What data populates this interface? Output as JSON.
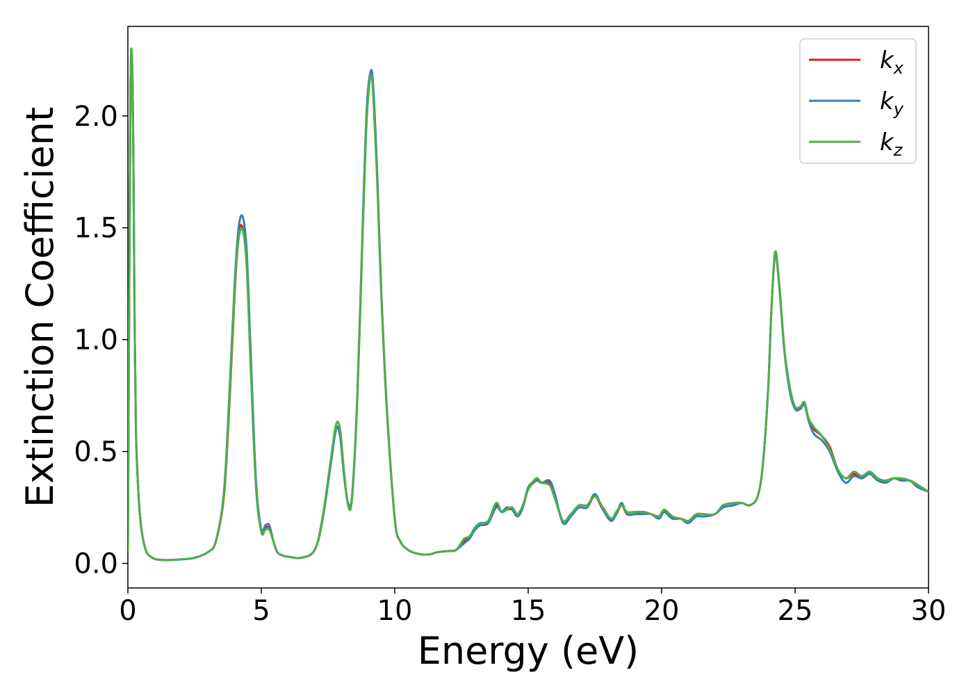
{
  "chart_data": {
    "type": "line",
    "xlabel": "Energy (eV)",
    "ylabel": "Extinction Coefficient",
    "xlim": [
      0,
      30
    ],
    "ylim": [
      -0.11,
      2.4
    ],
    "xticks": [
      0,
      5,
      10,
      15,
      20,
      25,
      30
    ],
    "yticks": [
      0.0,
      0.5,
      1.0,
      1.5,
      2.0
    ],
    "xtick_labels": [
      "0",
      "5",
      "10",
      "15",
      "20",
      "25",
      "30"
    ],
    "ytick_labels": [
      "0.0",
      "0.5",
      "1.0",
      "1.5",
      "2.0"
    ],
    "grid": false,
    "legend_position": "top-right",
    "series": [
      {
        "name": "k_x",
        "label_main": "k",
        "label_sub": "x",
        "color": "#e41a1c",
        "x": [
          0,
          0.05,
          0.1,
          0.15,
          0.2,
          0.25,
          0.3,
          0.4,
          0.5,
          0.6,
          0.7,
          0.8,
          1.0,
          1.3,
          1.6,
          2.0,
          2.5,
          3.0,
          3.3,
          3.6,
          3.8,
          4.0,
          4.15,
          4.3,
          4.45,
          4.6,
          4.8,
          5.0,
          5.15,
          5.3,
          5.45,
          5.6,
          5.8,
          6.0,
          6.5,
          7.0,
          7.3,
          7.6,
          7.8,
          7.95,
          8.1,
          8.25,
          8.4,
          8.6,
          8.8,
          8.95,
          9.1,
          9.2,
          9.35,
          9.5,
          9.7,
          10.0,
          10.2,
          10.5,
          10.8,
          11.0,
          11.3,
          11.6,
          12.0,
          12.3,
          12.6,
          12.8,
          13.0,
          13.2,
          13.5,
          13.8,
          14.0,
          14.2,
          14.4,
          14.6,
          14.8,
          15.0,
          15.3,
          15.5,
          15.8,
          16.0,
          16.3,
          16.6,
          16.9,
          17.2,
          17.5,
          17.8,
          18.1,
          18.3,
          18.5,
          18.7,
          19.0,
          19.3,
          19.6,
          19.9,
          20.1,
          20.4,
          20.7,
          21.0,
          21.3,
          21.6,
          22.0,
          22.3,
          22.7,
          23.0,
          23.3,
          23.6,
          23.8,
          24.0,
          24.1,
          24.25,
          24.4,
          24.6,
          24.8,
          25.0,
          25.2,
          25.35,
          25.5,
          25.7,
          26.0,
          26.3,
          26.6,
          26.9,
          27.2,
          27.5,
          27.8,
          28.1,
          28.4,
          28.7,
          29.0,
          29.3,
          29.6,
          30.0
        ],
        "y": [
          0.05,
          1.2,
          2.15,
          2.26,
          1.9,
          1.1,
          0.6,
          0.3,
          0.16,
          0.09,
          0.05,
          0.035,
          0.02,
          0.015,
          0.015,
          0.018,
          0.025,
          0.05,
          0.1,
          0.3,
          0.7,
          1.2,
          1.47,
          1.5,
          1.35,
          0.9,
          0.35,
          0.15,
          0.16,
          0.16,
          0.1,
          0.05,
          0.035,
          0.03,
          0.025,
          0.06,
          0.2,
          0.45,
          0.6,
          0.58,
          0.4,
          0.27,
          0.3,
          0.75,
          1.5,
          2.0,
          2.19,
          2.1,
          1.7,
          1.2,
          0.7,
          0.2,
          0.1,
          0.06,
          0.045,
          0.04,
          0.04,
          0.05,
          0.055,
          0.06,
          0.1,
          0.12,
          0.15,
          0.17,
          0.18,
          0.26,
          0.23,
          0.24,
          0.24,
          0.21,
          0.25,
          0.33,
          0.37,
          0.36,
          0.36,
          0.3,
          0.19,
          0.22,
          0.25,
          0.25,
          0.3,
          0.24,
          0.2,
          0.22,
          0.26,
          0.22,
          0.22,
          0.23,
          0.22,
          0.21,
          0.23,
          0.2,
          0.2,
          0.19,
          0.21,
          0.21,
          0.22,
          0.25,
          0.26,
          0.27,
          0.26,
          0.3,
          0.45,
          0.8,
          1.1,
          1.38,
          1.25,
          0.95,
          0.78,
          0.7,
          0.7,
          0.72,
          0.65,
          0.6,
          0.57,
          0.52,
          0.42,
          0.38,
          0.4,
          0.38,
          0.4,
          0.37,
          0.37,
          0.38,
          0.37,
          0.37,
          0.35,
          0.32
        ]
      },
      {
        "name": "k_y",
        "label_main": "k",
        "label_sub": "y",
        "color": "#377eb8",
        "x": [
          0,
          0.05,
          0.1,
          0.15,
          0.2,
          0.25,
          0.3,
          0.4,
          0.5,
          0.6,
          0.7,
          0.8,
          1.0,
          1.3,
          1.6,
          2.0,
          2.5,
          3.0,
          3.3,
          3.6,
          3.8,
          4.0,
          4.15,
          4.3,
          4.45,
          4.6,
          4.8,
          5.0,
          5.15,
          5.3,
          5.45,
          5.6,
          5.8,
          6.0,
          6.5,
          7.0,
          7.3,
          7.6,
          7.8,
          7.95,
          8.1,
          8.25,
          8.4,
          8.6,
          8.8,
          8.95,
          9.1,
          9.2,
          9.35,
          9.5,
          9.7,
          10.0,
          10.2,
          10.5,
          10.8,
          11.0,
          11.3,
          11.6,
          12.0,
          12.3,
          12.6,
          12.8,
          13.0,
          13.2,
          13.5,
          13.8,
          14.0,
          14.2,
          14.4,
          14.6,
          14.8,
          15.0,
          15.3,
          15.5,
          15.8,
          16.0,
          16.3,
          16.6,
          16.9,
          17.2,
          17.5,
          17.8,
          18.1,
          18.3,
          18.5,
          18.7,
          19.0,
          19.3,
          19.6,
          19.9,
          20.1,
          20.4,
          20.7,
          21.0,
          21.3,
          21.6,
          22.0,
          22.3,
          22.7,
          23.0,
          23.3,
          23.6,
          23.8,
          24.0,
          24.1,
          24.25,
          24.4,
          24.6,
          24.8,
          25.0,
          25.2,
          25.35,
          25.5,
          25.7,
          26.0,
          26.3,
          26.6,
          26.9,
          27.2,
          27.5,
          27.8,
          28.1,
          28.4,
          28.7,
          29.0,
          29.3,
          29.6,
          30.0
        ],
        "y": [
          0.05,
          1.2,
          2.15,
          2.26,
          1.9,
          1.1,
          0.6,
          0.3,
          0.16,
          0.09,
          0.05,
          0.035,
          0.02,
          0.015,
          0.015,
          0.018,
          0.025,
          0.05,
          0.1,
          0.32,
          0.75,
          1.25,
          1.5,
          1.55,
          1.4,
          0.95,
          0.37,
          0.15,
          0.17,
          0.17,
          0.1,
          0.05,
          0.035,
          0.03,
          0.025,
          0.06,
          0.2,
          0.44,
          0.6,
          0.57,
          0.39,
          0.27,
          0.3,
          0.76,
          1.52,
          2.03,
          2.2,
          2.12,
          1.72,
          1.2,
          0.7,
          0.2,
          0.1,
          0.06,
          0.045,
          0.04,
          0.04,
          0.05,
          0.055,
          0.06,
          0.09,
          0.11,
          0.15,
          0.17,
          0.18,
          0.25,
          0.23,
          0.25,
          0.24,
          0.21,
          0.25,
          0.34,
          0.37,
          0.36,
          0.37,
          0.31,
          0.18,
          0.21,
          0.25,
          0.25,
          0.31,
          0.24,
          0.19,
          0.22,
          0.27,
          0.22,
          0.22,
          0.22,
          0.22,
          0.2,
          0.23,
          0.2,
          0.2,
          0.18,
          0.21,
          0.21,
          0.22,
          0.25,
          0.26,
          0.27,
          0.26,
          0.3,
          0.45,
          0.8,
          1.1,
          1.39,
          1.25,
          0.95,
          0.77,
          0.69,
          0.69,
          0.71,
          0.64,
          0.58,
          0.55,
          0.5,
          0.41,
          0.36,
          0.39,
          0.38,
          0.4,
          0.37,
          0.36,
          0.38,
          0.37,
          0.37,
          0.34,
          0.32
        ]
      },
      {
        "name": "k_z",
        "label_main": "k",
        "label_sub": "z",
        "color": "#4daf4a",
        "x": [
          0,
          0.05,
          0.1,
          0.15,
          0.2,
          0.25,
          0.3,
          0.4,
          0.5,
          0.6,
          0.7,
          0.8,
          1.0,
          1.3,
          1.6,
          2.0,
          2.5,
          3.0,
          3.3,
          3.6,
          3.8,
          4.0,
          4.15,
          4.3,
          4.45,
          4.6,
          4.8,
          5.0,
          5.15,
          5.3,
          5.45,
          5.6,
          5.8,
          6.0,
          6.5,
          7.0,
          7.3,
          7.6,
          7.8,
          7.95,
          8.1,
          8.25,
          8.4,
          8.6,
          8.8,
          8.95,
          9.1,
          9.2,
          9.35,
          9.5,
          9.7,
          10.0,
          10.2,
          10.5,
          10.8,
          11.0,
          11.3,
          11.6,
          12.0,
          12.3,
          12.6,
          12.8,
          13.0,
          13.2,
          13.5,
          13.8,
          14.0,
          14.2,
          14.4,
          14.6,
          14.8,
          15.0,
          15.3,
          15.5,
          15.8,
          16.0,
          16.3,
          16.6,
          16.9,
          17.2,
          17.5,
          17.8,
          18.1,
          18.3,
          18.5,
          18.7,
          19.0,
          19.3,
          19.6,
          19.9,
          20.1,
          20.4,
          20.7,
          21.0,
          21.3,
          21.6,
          22.0,
          22.3,
          22.7,
          23.0,
          23.3,
          23.6,
          23.8,
          24.0,
          24.1,
          24.25,
          24.4,
          24.6,
          24.8,
          25.0,
          25.2,
          25.35,
          25.5,
          25.7,
          26.0,
          26.3,
          26.6,
          26.9,
          27.2,
          27.5,
          27.8,
          28.1,
          28.4,
          28.7,
          29.0,
          29.3,
          29.6,
          30.0
        ],
        "y": [
          0.05,
          1.2,
          2.16,
          2.27,
          1.9,
          1.1,
          0.6,
          0.3,
          0.16,
          0.09,
          0.05,
          0.035,
          0.02,
          0.015,
          0.015,
          0.018,
          0.025,
          0.05,
          0.1,
          0.31,
          0.72,
          1.22,
          1.45,
          1.49,
          1.33,
          0.88,
          0.34,
          0.14,
          0.15,
          0.15,
          0.1,
          0.05,
          0.035,
          0.03,
          0.025,
          0.06,
          0.21,
          0.46,
          0.62,
          0.6,
          0.41,
          0.26,
          0.29,
          0.74,
          1.48,
          1.98,
          2.18,
          2.08,
          1.68,
          1.18,
          0.69,
          0.2,
          0.1,
          0.06,
          0.045,
          0.04,
          0.04,
          0.05,
          0.055,
          0.06,
          0.11,
          0.12,
          0.16,
          0.18,
          0.19,
          0.27,
          0.23,
          0.24,
          0.25,
          0.22,
          0.26,
          0.33,
          0.38,
          0.36,
          0.35,
          0.29,
          0.19,
          0.22,
          0.26,
          0.26,
          0.3,
          0.25,
          0.2,
          0.23,
          0.26,
          0.23,
          0.23,
          0.23,
          0.22,
          0.21,
          0.24,
          0.21,
          0.2,
          0.19,
          0.22,
          0.22,
          0.22,
          0.26,
          0.27,
          0.27,
          0.26,
          0.3,
          0.45,
          0.8,
          1.1,
          1.39,
          1.26,
          0.96,
          0.79,
          0.7,
          0.7,
          0.72,
          0.65,
          0.61,
          0.57,
          0.51,
          0.42,
          0.38,
          0.41,
          0.39,
          0.41,
          0.38,
          0.37,
          0.38,
          0.38,
          0.37,
          0.35,
          0.32
        ]
      }
    ]
  }
}
